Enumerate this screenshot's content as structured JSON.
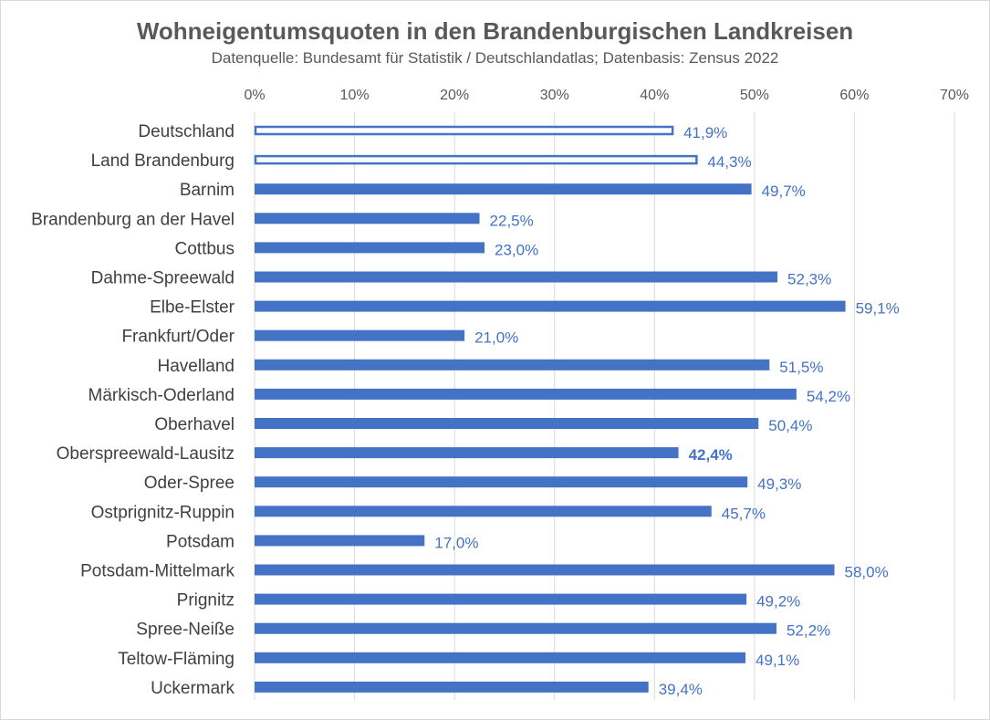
{
  "chart_data": {
    "type": "bar",
    "orientation": "horizontal",
    "title": "Wohneigentumsquoten in den Brandenburgischen Landkreisen",
    "subtitle": "Datenquelle: Bundesamt für Statistik / Deutschlandatlas; Datenbasis: Zensus 2022",
    "xlabel": "",
    "ylabel": "",
    "xlim": [
      0,
      70
    ],
    "x_ticks": [
      0,
      10,
      20,
      30,
      40,
      50,
      60,
      70
    ],
    "x_tick_labels": [
      "0%",
      "10%",
      "20%",
      "30%",
      "40%",
      "50%",
      "60%",
      "70%"
    ],
    "x_axis_position": "top",
    "grid": true,
    "legend": "none",
    "colors": {
      "bar": "#4472c4",
      "outline_fill": "#ffffff",
      "label": "#4472c4",
      "grid": "#d9d9d9"
    },
    "categories": [
      "Deutschland",
      "Land Brandenburg",
      "Barnim",
      "Brandenburg an der Havel",
      "Cottbus",
      "Dahme-Spreewald",
      "Elbe-Elster",
      "Frankfurt/Oder",
      "Havelland",
      "Märkisch-Oderland",
      "Oberhavel",
      "Oberspreewald-Lausitz",
      "Oder-Spree",
      "Ostprignitz-Ruppin",
      "Potsdam",
      "Potsdam-Mittelmark",
      "Prignitz",
      "Spree-Neiße",
      "Teltow-Fläming",
      "Uckermark"
    ],
    "values": [
      41.9,
      44.3,
      49.7,
      22.5,
      23.0,
      52.3,
      59.1,
      21.0,
      51.5,
      54.2,
      50.4,
      42.4,
      49.3,
      45.7,
      17.0,
      58.0,
      49.2,
      52.2,
      49.1,
      39.4
    ],
    "data_labels": [
      "41,9%",
      "44,3%",
      "49,7%",
      "22,5%",
      "23,0%",
      "52,3%",
      "59,1%",
      "21,0%",
      "51,5%",
      "54,2%",
      "50,4%",
      "42,4%",
      "49,3%",
      "45,7%",
      "17,0%",
      "58,0%",
      "49,2%",
      "52,2%",
      "49,1%",
      "39,4%"
    ],
    "outlined_bars": [
      "Deutschland",
      "Land Brandenburg"
    ],
    "highlighted_label": "Oberspreewald-Lausitz"
  }
}
